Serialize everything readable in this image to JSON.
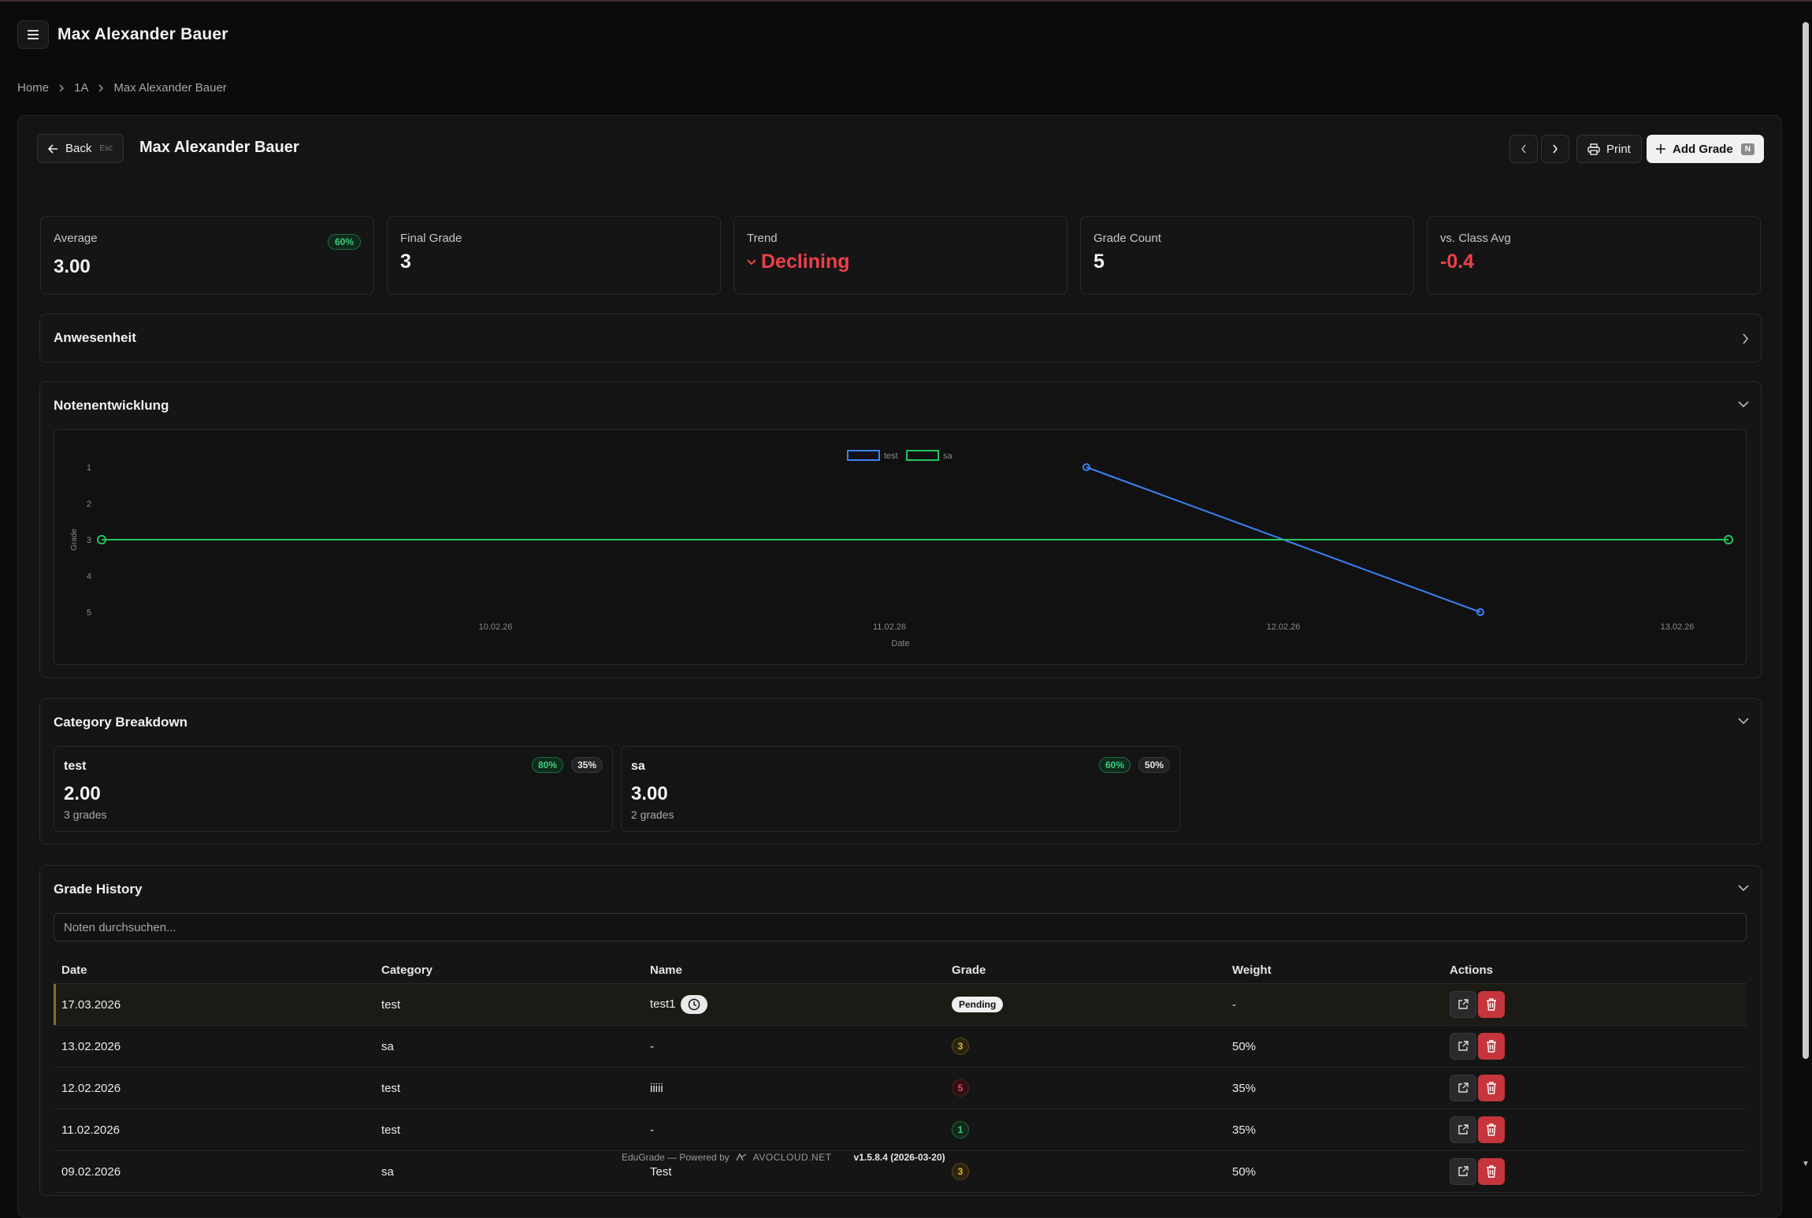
{
  "header": {
    "title": "Max Alexander Bauer"
  },
  "breadcrumb": [
    "Home",
    "1A",
    "Max Alexander Bauer"
  ],
  "toolbar": {
    "back_label": "Back",
    "back_kbd": "Esc",
    "student_name": "Max Alexander Bauer",
    "print_label": "Print",
    "add_grade_label": "Add Grade",
    "add_grade_kbd": "N"
  },
  "stats": {
    "average": {
      "label": "Average",
      "value": "3.00",
      "badge": "60%"
    },
    "final_grade": {
      "label": "Final Grade",
      "value": "3"
    },
    "trend": {
      "label": "Trend",
      "value": "Declining"
    },
    "grade_count": {
      "label": "Grade Count",
      "value": "5"
    },
    "vs_class_avg": {
      "label": "vs. Class Avg",
      "value": "-0.4"
    }
  },
  "sections": {
    "attendance": "Anwesenheit",
    "development": "Notenentwicklung",
    "category_breakdown": "Category Breakdown",
    "grade_history": "Grade History"
  },
  "chart_data": {
    "type": "line",
    "xlabel": "Date",
    "ylabel": "Grade",
    "x_ticks": [
      "10.02.26",
      "11.02.26",
      "12.02.26",
      "13.02.26"
    ],
    "y_ticks": [
      "1",
      "2",
      "3",
      "4",
      "5"
    ],
    "ylim": [
      1,
      5
    ],
    "y_inverted": true,
    "legend_position": "top-center",
    "series": [
      {
        "name": "test",
        "color": "#3b82f6",
        "points": [
          {
            "x": "11.02.26 (approx. 12:00)",
            "y": 1
          },
          {
            "x": "12.02.26 (approx. 12:00)",
            "y": 5
          }
        ]
      },
      {
        "name": "sa",
        "color": "#22c55e",
        "points": [
          {
            "x": "09.02.26",
            "y": 3
          },
          {
            "x": "13.02.26",
            "y": 3
          }
        ]
      }
    ]
  },
  "categories": [
    {
      "name": "test",
      "avg": "2.00",
      "count": "3 grades",
      "percent": "80%",
      "weight": "35%"
    },
    {
      "name": "sa",
      "avg": "3.00",
      "count": "2 grades",
      "percent": "60%",
      "weight": "50%"
    }
  ],
  "grade_history": {
    "search_placeholder": "Noten durchsuchen...",
    "columns": [
      "Date",
      "Category",
      "Name",
      "Grade",
      "Weight",
      "Actions"
    ],
    "rows": [
      {
        "date": "17.03.2026",
        "category": "test",
        "name": "test1",
        "grade": "Pending",
        "weight": "-"
      },
      {
        "date": "13.02.2026",
        "category": "sa",
        "name": "-",
        "grade": "3",
        "weight": "50%"
      },
      {
        "date": "12.02.2026",
        "category": "test",
        "name": "iiiii",
        "grade": "5",
        "weight": "35%"
      },
      {
        "date": "11.02.2026",
        "category": "test",
        "name": "-",
        "grade": "1",
        "weight": "35%"
      },
      {
        "date": "09.02.2026",
        "category": "sa",
        "name": "Test",
        "grade": "3",
        "weight": "50%"
      }
    ]
  },
  "footer": {
    "powered": "EduGrade — Powered by",
    "brand": "AVOCLOUD.NET",
    "version": "v1.5.8.4 (2026-03-20)"
  },
  "colors": {
    "accent_green": "#3ccf7d",
    "accent_red": "#ef3f48",
    "series_test": "#3b82f6",
    "series_sa": "#22c55e"
  }
}
